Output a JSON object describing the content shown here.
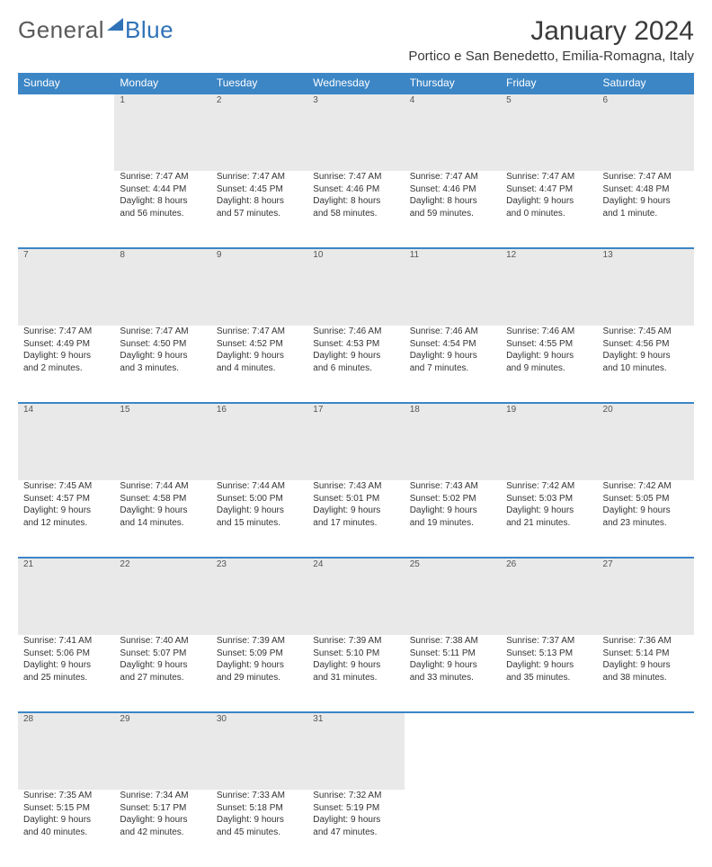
{
  "brand": {
    "part1": "General",
    "part2": "Blue"
  },
  "title": "January 2024",
  "location": "Portico e San Benedetto, Emilia-Romagna, Italy",
  "colors": {
    "header_bg": "#3c86c6",
    "header_text": "#ffffff",
    "daynum_bg": "#e9e9e9",
    "row_border": "#3c86c6",
    "text": "#333333",
    "brand_blue": "#2f72b8",
    "page_bg": "#ffffff"
  },
  "weekdays": [
    "Sunday",
    "Monday",
    "Tuesday",
    "Wednesday",
    "Thursday",
    "Friday",
    "Saturday"
  ],
  "layout": {
    "first_weekday_index": 1,
    "days_in_month": 31,
    "columns": 7,
    "rows": 5
  },
  "days": {
    "1": {
      "sunrise": "Sunrise: 7:47 AM",
      "sunset": "Sunset: 4:44 PM",
      "daylight1": "Daylight: 8 hours",
      "daylight2": "and 56 minutes."
    },
    "2": {
      "sunrise": "Sunrise: 7:47 AM",
      "sunset": "Sunset: 4:45 PM",
      "daylight1": "Daylight: 8 hours",
      "daylight2": "and 57 minutes."
    },
    "3": {
      "sunrise": "Sunrise: 7:47 AM",
      "sunset": "Sunset: 4:46 PM",
      "daylight1": "Daylight: 8 hours",
      "daylight2": "and 58 minutes."
    },
    "4": {
      "sunrise": "Sunrise: 7:47 AM",
      "sunset": "Sunset: 4:46 PM",
      "daylight1": "Daylight: 8 hours",
      "daylight2": "and 59 minutes."
    },
    "5": {
      "sunrise": "Sunrise: 7:47 AM",
      "sunset": "Sunset: 4:47 PM",
      "daylight1": "Daylight: 9 hours",
      "daylight2": "and 0 minutes."
    },
    "6": {
      "sunrise": "Sunrise: 7:47 AM",
      "sunset": "Sunset: 4:48 PM",
      "daylight1": "Daylight: 9 hours",
      "daylight2": "and 1 minute."
    },
    "7": {
      "sunrise": "Sunrise: 7:47 AM",
      "sunset": "Sunset: 4:49 PM",
      "daylight1": "Daylight: 9 hours",
      "daylight2": "and 2 minutes."
    },
    "8": {
      "sunrise": "Sunrise: 7:47 AM",
      "sunset": "Sunset: 4:50 PM",
      "daylight1": "Daylight: 9 hours",
      "daylight2": "and 3 minutes."
    },
    "9": {
      "sunrise": "Sunrise: 7:47 AM",
      "sunset": "Sunset: 4:52 PM",
      "daylight1": "Daylight: 9 hours",
      "daylight2": "and 4 minutes."
    },
    "10": {
      "sunrise": "Sunrise: 7:46 AM",
      "sunset": "Sunset: 4:53 PM",
      "daylight1": "Daylight: 9 hours",
      "daylight2": "and 6 minutes."
    },
    "11": {
      "sunrise": "Sunrise: 7:46 AM",
      "sunset": "Sunset: 4:54 PM",
      "daylight1": "Daylight: 9 hours",
      "daylight2": "and 7 minutes."
    },
    "12": {
      "sunrise": "Sunrise: 7:46 AM",
      "sunset": "Sunset: 4:55 PM",
      "daylight1": "Daylight: 9 hours",
      "daylight2": "and 9 minutes."
    },
    "13": {
      "sunrise": "Sunrise: 7:45 AM",
      "sunset": "Sunset: 4:56 PM",
      "daylight1": "Daylight: 9 hours",
      "daylight2": "and 10 minutes."
    },
    "14": {
      "sunrise": "Sunrise: 7:45 AM",
      "sunset": "Sunset: 4:57 PM",
      "daylight1": "Daylight: 9 hours",
      "daylight2": "and 12 minutes."
    },
    "15": {
      "sunrise": "Sunrise: 7:44 AM",
      "sunset": "Sunset: 4:58 PM",
      "daylight1": "Daylight: 9 hours",
      "daylight2": "and 14 minutes."
    },
    "16": {
      "sunrise": "Sunrise: 7:44 AM",
      "sunset": "Sunset: 5:00 PM",
      "daylight1": "Daylight: 9 hours",
      "daylight2": "and 15 minutes."
    },
    "17": {
      "sunrise": "Sunrise: 7:43 AM",
      "sunset": "Sunset: 5:01 PM",
      "daylight1": "Daylight: 9 hours",
      "daylight2": "and 17 minutes."
    },
    "18": {
      "sunrise": "Sunrise: 7:43 AM",
      "sunset": "Sunset: 5:02 PM",
      "daylight1": "Daylight: 9 hours",
      "daylight2": "and 19 minutes."
    },
    "19": {
      "sunrise": "Sunrise: 7:42 AM",
      "sunset": "Sunset: 5:03 PM",
      "daylight1": "Daylight: 9 hours",
      "daylight2": "and 21 minutes."
    },
    "20": {
      "sunrise": "Sunrise: 7:42 AM",
      "sunset": "Sunset: 5:05 PM",
      "daylight1": "Daylight: 9 hours",
      "daylight2": "and 23 minutes."
    },
    "21": {
      "sunrise": "Sunrise: 7:41 AM",
      "sunset": "Sunset: 5:06 PM",
      "daylight1": "Daylight: 9 hours",
      "daylight2": "and 25 minutes."
    },
    "22": {
      "sunrise": "Sunrise: 7:40 AM",
      "sunset": "Sunset: 5:07 PM",
      "daylight1": "Daylight: 9 hours",
      "daylight2": "and 27 minutes."
    },
    "23": {
      "sunrise": "Sunrise: 7:39 AM",
      "sunset": "Sunset: 5:09 PM",
      "daylight1": "Daylight: 9 hours",
      "daylight2": "and 29 minutes."
    },
    "24": {
      "sunrise": "Sunrise: 7:39 AM",
      "sunset": "Sunset: 5:10 PM",
      "daylight1": "Daylight: 9 hours",
      "daylight2": "and 31 minutes."
    },
    "25": {
      "sunrise": "Sunrise: 7:38 AM",
      "sunset": "Sunset: 5:11 PM",
      "daylight1": "Daylight: 9 hours",
      "daylight2": "and 33 minutes."
    },
    "26": {
      "sunrise": "Sunrise: 7:37 AM",
      "sunset": "Sunset: 5:13 PM",
      "daylight1": "Daylight: 9 hours",
      "daylight2": "and 35 minutes."
    },
    "27": {
      "sunrise": "Sunrise: 7:36 AM",
      "sunset": "Sunset: 5:14 PM",
      "daylight1": "Daylight: 9 hours",
      "daylight2": "and 38 minutes."
    },
    "28": {
      "sunrise": "Sunrise: 7:35 AM",
      "sunset": "Sunset: 5:15 PM",
      "daylight1": "Daylight: 9 hours",
      "daylight2": "and 40 minutes."
    },
    "29": {
      "sunrise": "Sunrise: 7:34 AM",
      "sunset": "Sunset: 5:17 PM",
      "daylight1": "Daylight: 9 hours",
      "daylight2": "and 42 minutes."
    },
    "30": {
      "sunrise": "Sunrise: 7:33 AM",
      "sunset": "Sunset: 5:18 PM",
      "daylight1": "Daylight: 9 hours",
      "daylight2": "and 45 minutes."
    },
    "31": {
      "sunrise": "Sunrise: 7:32 AM",
      "sunset": "Sunset: 5:19 PM",
      "daylight1": "Daylight: 9 hours",
      "daylight2": "and 47 minutes."
    }
  }
}
